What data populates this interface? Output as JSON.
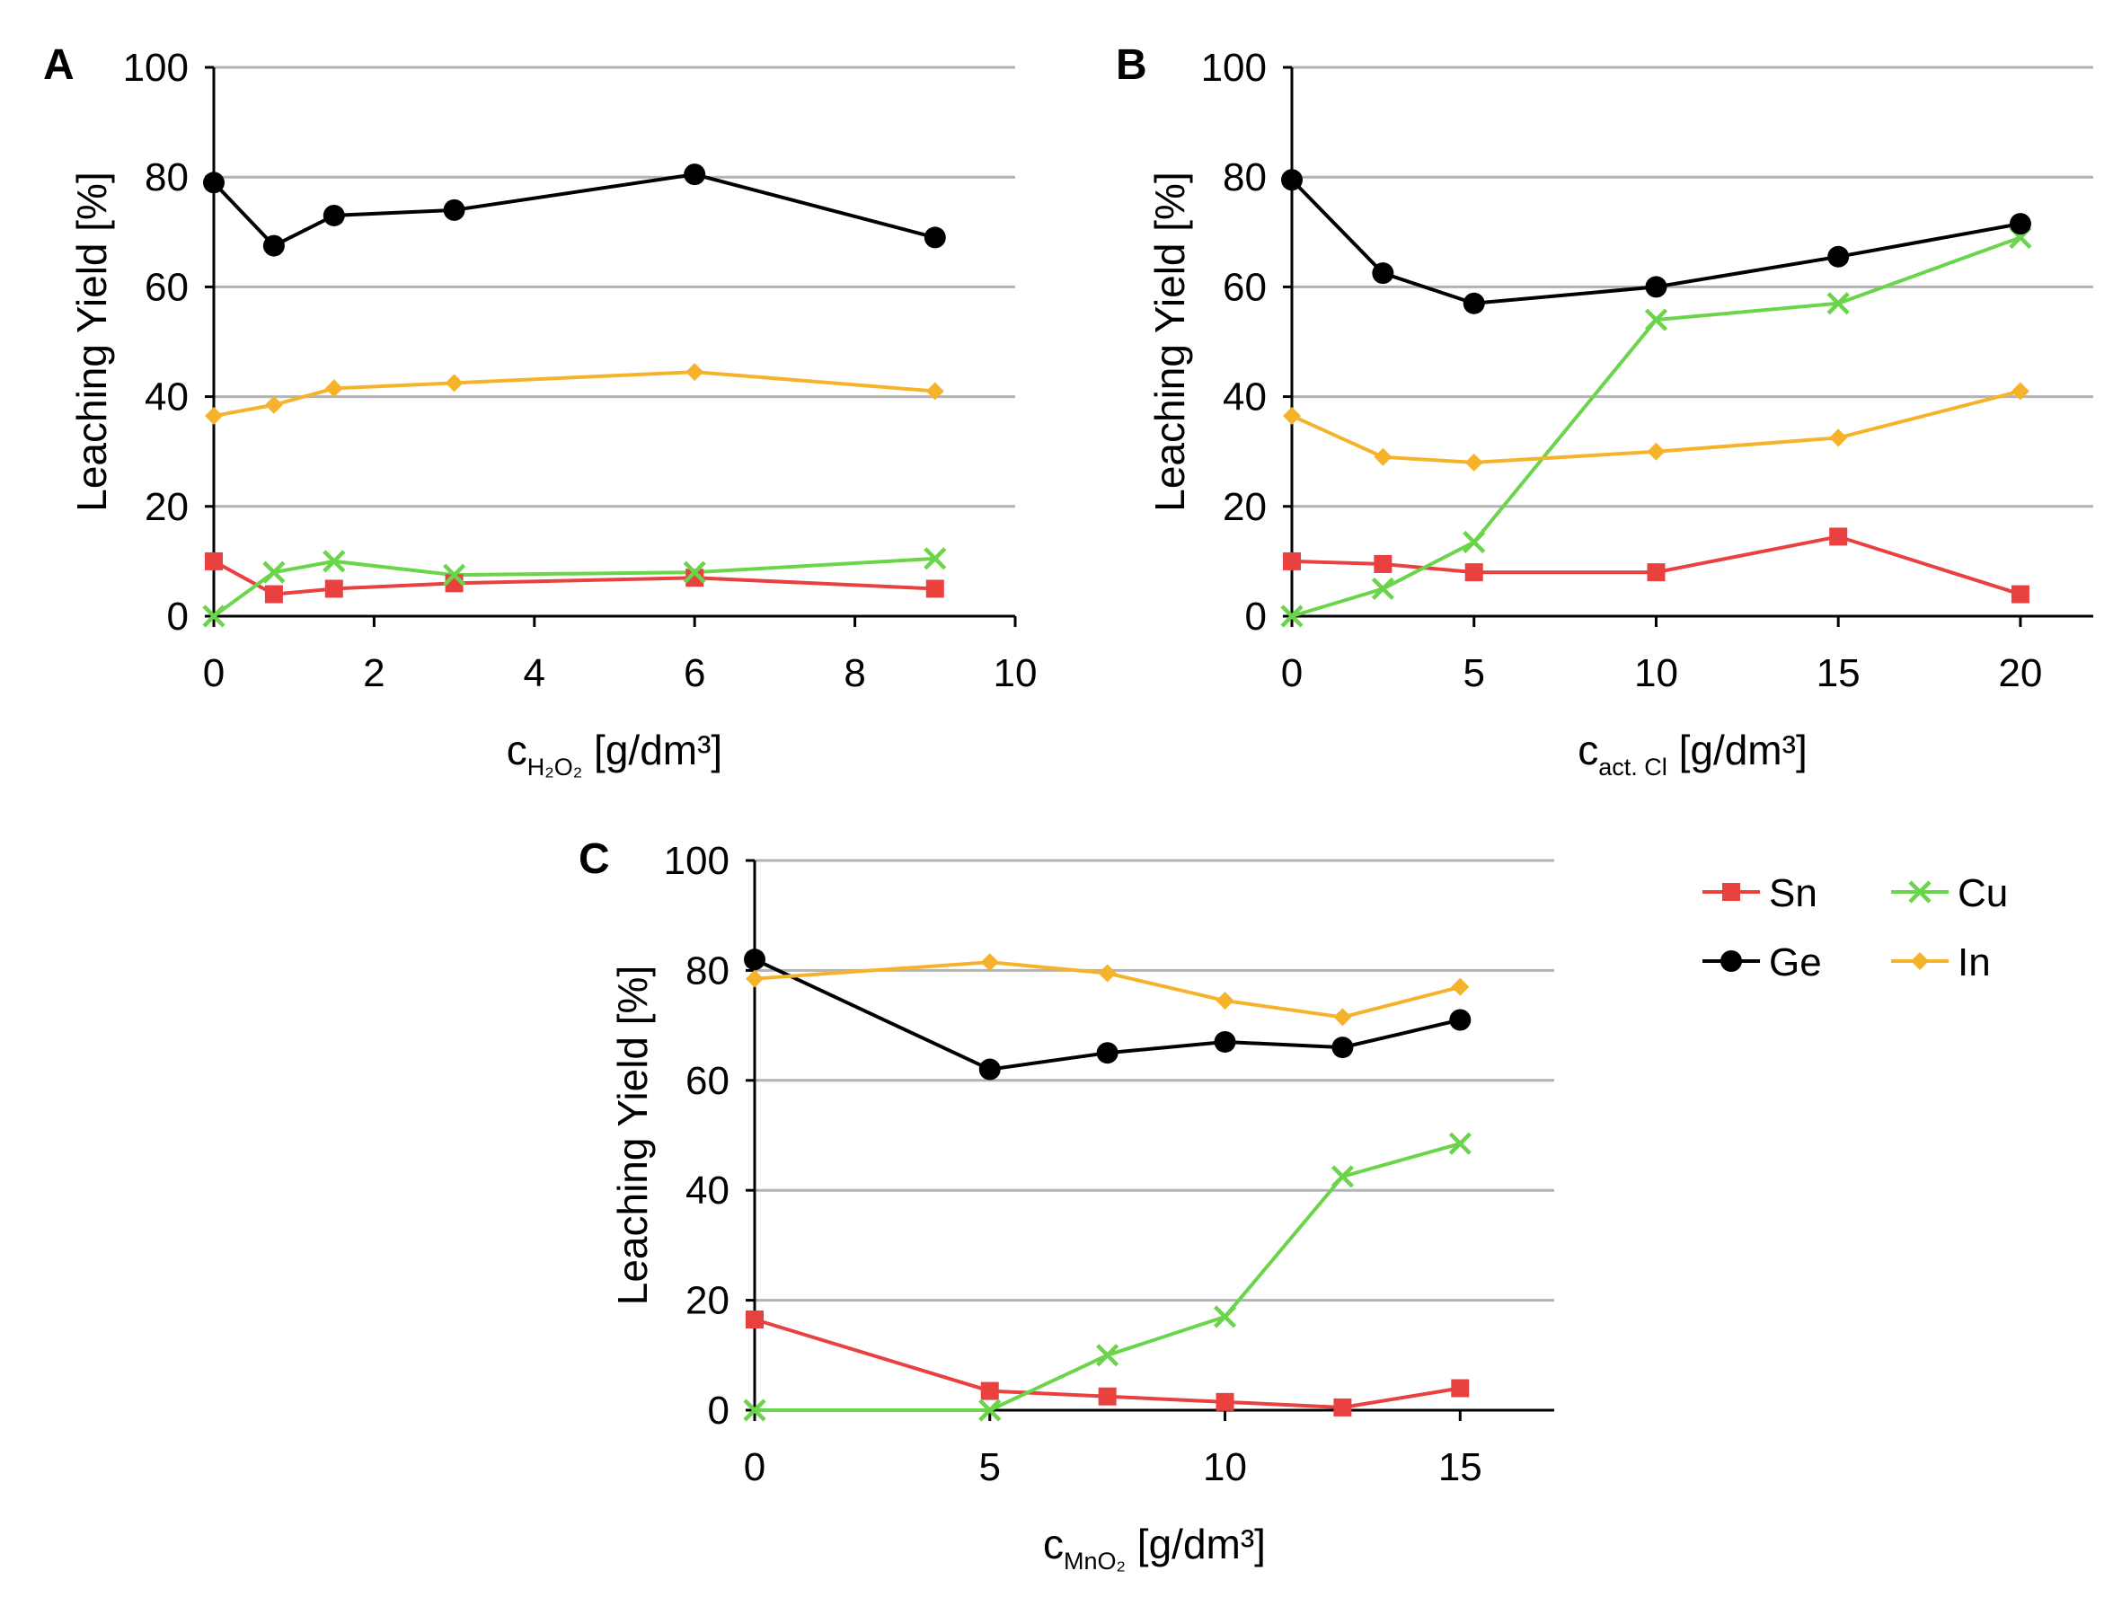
{
  "chart_data": [
    {
      "type": "line",
      "panel": "A",
      "xlabel_main": "c",
      "xlabel_sub": "H₂O₂",
      "xlabel_unit": " [g/dm³]",
      "ylabel": "Leaching Yield [%]",
      "xlim": [
        0,
        10
      ],
      "ylim": [
        0,
        100
      ],
      "xticks": [
        0,
        2,
        4,
        6,
        8,
        10
      ],
      "yticks": [
        0,
        20,
        40,
        60,
        80,
        100
      ],
      "series": [
        {
          "name": "Sn",
          "color": "#e8413f",
          "marker": "square",
          "x": [
            0,
            0.75,
            1.5,
            3,
            6,
            9
          ],
          "y": [
            10,
            4,
            5,
            6,
            7,
            5
          ]
        },
        {
          "name": "Cu",
          "color": "#6ad44a",
          "marker": "x",
          "x": [
            0,
            0.75,
            1.5,
            3,
            6,
            9
          ],
          "y": [
            0,
            8,
            10,
            7.5,
            8,
            10.5
          ]
        },
        {
          "name": "Ge",
          "color": "#000000",
          "marker": "circle",
          "x": [
            0,
            0.75,
            1.5,
            3,
            6,
            9
          ],
          "y": [
            79,
            67.5,
            73,
            74,
            80.5,
            69
          ]
        },
        {
          "name": "In",
          "color": "#f5b32c",
          "marker": "diamond",
          "x": [
            0,
            0.75,
            1.5,
            3,
            6,
            9
          ],
          "y": [
            36.5,
            38.5,
            41.5,
            42.5,
            44.5,
            41
          ]
        }
      ]
    },
    {
      "type": "line",
      "panel": "B",
      "xlabel_main": "c",
      "xlabel_sub": "act. Cl",
      "xlabel_unit": " [g/dm³]",
      "ylabel": "Leaching Yield [%]",
      "xlim": [
        0,
        22
      ],
      "ylim": [
        0,
        100
      ],
      "xticks": [
        0,
        5,
        10,
        15,
        20
      ],
      "yticks": [
        0,
        20,
        40,
        60,
        80,
        100
      ],
      "series": [
        {
          "name": "Sn",
          "color": "#e8413f",
          "marker": "square",
          "x": [
            0,
            2.5,
            5,
            10,
            15,
            20
          ],
          "y": [
            10,
            9.5,
            8,
            8,
            14.5,
            4
          ]
        },
        {
          "name": "Cu",
          "color": "#6ad44a",
          "marker": "x",
          "x": [
            0,
            2.5,
            5,
            10,
            15,
            20
          ],
          "y": [
            0,
            5,
            13.5,
            54,
            57,
            69
          ]
        },
        {
          "name": "Ge",
          "color": "#000000",
          "marker": "circle",
          "x": [
            0,
            2.5,
            5,
            10,
            15,
            20
          ],
          "y": [
            79.5,
            62.5,
            57,
            60,
            65.5,
            71.5
          ]
        },
        {
          "name": "In",
          "color": "#f5b32c",
          "marker": "diamond",
          "x": [
            0,
            2.5,
            5,
            10,
            15,
            20
          ],
          "y": [
            36.5,
            29,
            28,
            30,
            32.5,
            41
          ]
        }
      ]
    },
    {
      "type": "line",
      "panel": "C",
      "xlabel_main": "c",
      "xlabel_sub": "MnO₂",
      "xlabel_unit": " [g/dm³]",
      "ylabel": "Leaching Yield [%]",
      "xlim": [
        0,
        17
      ],
      "ylim": [
        0,
        100
      ],
      "xticks": [
        0,
        5,
        10,
        15
      ],
      "yticks": [
        0,
        20,
        40,
        60,
        80,
        100
      ],
      "series": [
        {
          "name": "Sn",
          "color": "#e8413f",
          "marker": "square",
          "x": [
            0,
            5,
            7.5,
            10,
            12.5,
            15
          ],
          "y": [
            16.5,
            3.5,
            2.5,
            1.5,
            0.5,
            4
          ]
        },
        {
          "name": "Cu",
          "color": "#6ad44a",
          "marker": "x",
          "x": [
            0,
            5,
            7.5,
            10,
            12.5,
            15
          ],
          "y": [
            0,
            0,
            10,
            17,
            42.5,
            48.5
          ]
        },
        {
          "name": "Ge",
          "color": "#000000",
          "marker": "circle",
          "x": [
            0,
            5,
            7.5,
            10,
            12.5,
            15
          ],
          "y": [
            82,
            62,
            65,
            67,
            66,
            71
          ]
        },
        {
          "name": "In",
          "color": "#f5b32c",
          "marker": "diamond",
          "x": [
            0,
            5,
            7.5,
            10,
            12.5,
            15
          ],
          "y": [
            78.5,
            81.5,
            79.5,
            74.5,
            71.5,
            77
          ]
        }
      ]
    }
  ],
  "legend": {
    "items": [
      {
        "name": "Sn",
        "color": "#e8413f",
        "marker": "square"
      },
      {
        "name": "Cu",
        "color": "#6ad44a",
        "marker": "x"
      },
      {
        "name": "Ge",
        "color": "#000000",
        "marker": "circle"
      },
      {
        "name": "In",
        "color": "#f5b32c",
        "marker": "diamond"
      }
    ]
  }
}
